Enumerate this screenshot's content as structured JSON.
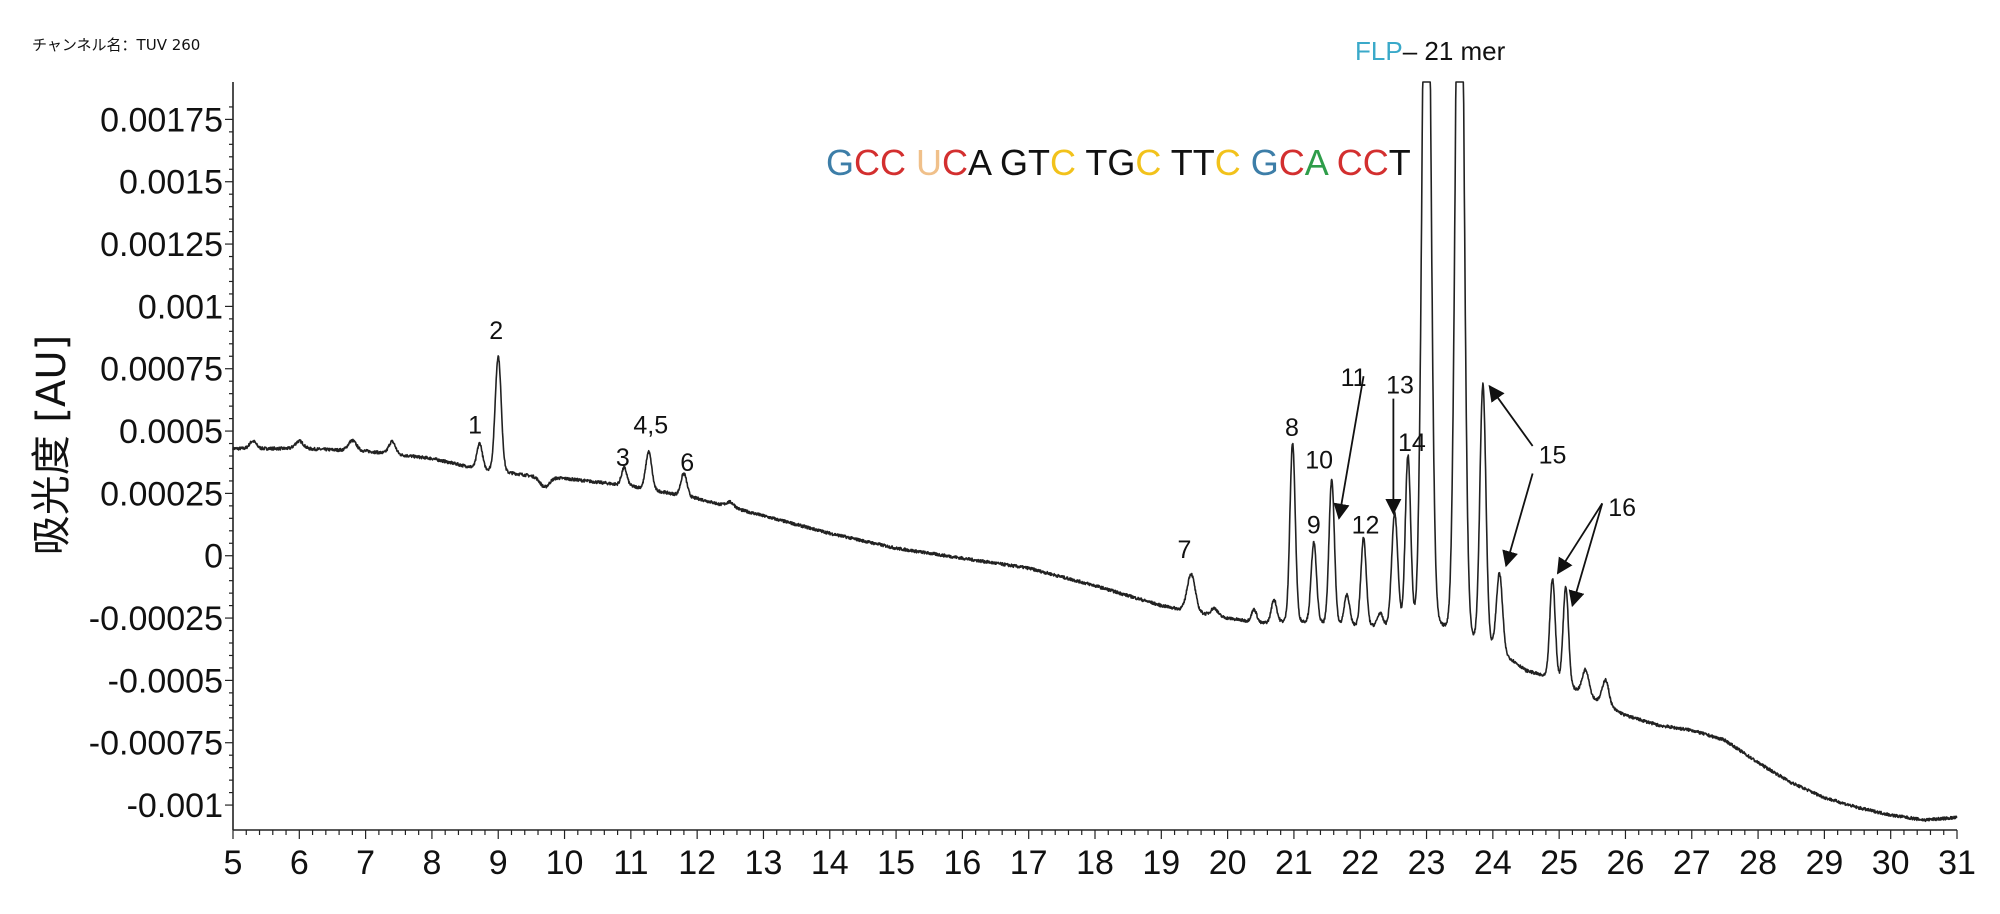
{
  "channel_label": "チャンネル名：TUV 260",
  "chart_data": {
    "type": "line",
    "ylabel": "吸光度 [AU]",
    "xlabel": "",
    "xlim": [
      5,
      31
    ],
    "ylim": [
      -0.0011,
      0.0019
    ],
    "x_ticks": [
      5,
      6,
      7,
      8,
      9,
      10,
      11,
      12,
      13,
      14,
      15,
      16,
      17,
      18,
      19,
      20,
      21,
      22,
      23,
      24,
      25,
      26,
      27,
      28,
      29,
      30,
      31
    ],
    "y_ticks": [
      {
        "value": 0.00175,
        "label": "0.00175"
      },
      {
        "value": 0.0015,
        "label": "0.0015"
      },
      {
        "value": 0.00125,
        "label": "0.00125"
      },
      {
        "value": 0.001,
        "label": "0.001"
      },
      {
        "value": 0.00075,
        "label": "0.00075"
      },
      {
        "value": 0.0005,
        "label": "0.0005"
      },
      {
        "value": 0.00025,
        "label": "0.00025"
      },
      {
        "value": 0,
        "label": "0"
      },
      {
        "value": -0.00025,
        "label": "-0.00025"
      },
      {
        "value": -0.0005,
        "label": "-0.0005"
      },
      {
        "value": -0.00075,
        "label": "-0.00075"
      },
      {
        "value": -0.001,
        "label": "-0.001"
      }
    ],
    "baseline": [
      [
        5,
        0.00043
      ],
      [
        6,
        0.00043
      ],
      [
        7,
        0.00042
      ],
      [
        8,
        0.00039
      ],
      [
        8.5,
        0.00036
      ],
      [
        9.5,
        0.00032
      ],
      [
        10,
        0.00031
      ],
      [
        11,
        0.00028
      ],
      [
        12,
        0.00023
      ],
      [
        13,
        0.00016
      ],
      [
        14,
        9e-05
      ],
      [
        15,
        3e-05
      ],
      [
        16,
        -1e-05
      ],
      [
        17,
        -5e-05
      ],
      [
        18,
        -0.00012
      ],
      [
        19,
        -0.0002
      ],
      [
        20,
        -0.00025
      ],
      [
        20.5,
        -0.00027
      ],
      [
        21,
        -0.00026
      ],
      [
        22,
        -0.00028
      ],
      [
        22.5,
        -0.00028
      ],
      [
        23,
        -0.00025
      ],
      [
        24,
        -0.00036
      ],
      [
        24.5,
        -0.00046
      ],
      [
        25,
        -0.0005
      ],
      [
        25.5,
        -0.00057
      ],
      [
        26,
        -0.00064
      ],
      [
        26.5,
        -0.00068
      ],
      [
        27,
        -0.0007
      ],
      [
        27.5,
        -0.00074
      ],
      [
        28,
        -0.00083
      ],
      [
        28.5,
        -0.00091
      ],
      [
        29,
        -0.00097
      ],
      [
        29.5,
        -0.00101
      ],
      [
        30,
        -0.00104
      ],
      [
        30.5,
        -0.00106
      ],
      [
        31,
        -0.00105
      ]
    ],
    "peaks": [
      {
        "x": 5.3,
        "h": 3e-05,
        "w": 0.05
      },
      {
        "x": 6.0,
        "h": 3e-05,
        "w": 0.06
      },
      {
        "x": 6.8,
        "h": 4e-05,
        "w": 0.06
      },
      {
        "x": 7.4,
        "h": 5e-05,
        "w": 0.05
      },
      {
        "x": 8.72,
        "h": 0.0001,
        "w": 0.04
      },
      {
        "x": 9.0,
        "h": 0.00046,
        "w": 0.045
      },
      {
        "x": 9.7,
        "h": -4e-05,
        "w": 0.07
      },
      {
        "x": 10.9,
        "h": 7e-05,
        "w": 0.04
      },
      {
        "x": 11.27,
        "h": 0.00015,
        "w": 0.045
      },
      {
        "x": 11.8,
        "h": 9e-05,
        "w": 0.045
      },
      {
        "x": 12.5,
        "h": 2e-05,
        "w": 0.06
      },
      {
        "x": 19.45,
        "h": 0.00015,
        "w": 0.06
      },
      {
        "x": 19.8,
        "h": 3e-05,
        "w": 0.05
      },
      {
        "x": 20.4,
        "h": 5e-05,
        "w": 0.04
      },
      {
        "x": 20.7,
        "h": 9e-05,
        "w": 0.04
      },
      {
        "x": 20.98,
        "h": 0.00071,
        "w": 0.04
      },
      {
        "x": 21.3,
        "h": 0.00032,
        "w": 0.04
      },
      {
        "x": 21.57,
        "h": 0.00058,
        "w": 0.04
      },
      {
        "x": 21.8,
        "h": 0.00012,
        "w": 0.04
      },
      {
        "x": 22.05,
        "h": 0.00035,
        "w": 0.04
      },
      {
        "x": 22.3,
        "h": 5e-05,
        "w": 0.04
      },
      {
        "x": 22.52,
        "h": 0.00045,
        "w": 0.045
      },
      {
        "x": 22.72,
        "h": 0.00067,
        "w": 0.04
      },
      {
        "x": 23.0,
        "h": 0.0035,
        "w": 0.06
      },
      {
        "x": 23.5,
        "h": 0.0035,
        "w": 0.06
      },
      {
        "x": 23.85,
        "h": 0.00103,
        "w": 0.045
      },
      {
        "x": 24.1,
        "h": 0.00031,
        "w": 0.045
      },
      {
        "x": 24.9,
        "h": 0.0004,
        "w": 0.04
      },
      {
        "x": 25.1,
        "h": 0.00039,
        "w": 0.04
      },
      {
        "x": 25.4,
        "h": 0.0001,
        "w": 0.05
      },
      {
        "x": 25.7,
        "h": 0.0001,
        "w": 0.05
      }
    ],
    "peak_labels": [
      {
        "text": "1",
        "x": 8.65,
        "y": 0.00049
      },
      {
        "text": "2",
        "x": 8.97,
        "y": 0.00087
      },
      {
        "text": "3",
        "x": 10.88,
        "y": 0.00036
      },
      {
        "text": "4,5",
        "x": 11.3,
        "y": 0.00049
      },
      {
        "text": "6",
        "x": 11.85,
        "y": 0.00034
      },
      {
        "text": "7",
        "x": 19.35,
        "y": -1e-05
      },
      {
        "text": "8",
        "x": 20.97,
        "y": 0.00048
      },
      {
        "text": "9",
        "x": 21.3,
        "y": 9e-05
      },
      {
        "text": "10",
        "x": 21.38,
        "y": 0.00035
      },
      {
        "text": "11",
        "x": 21.9,
        "y": 0.00068
      },
      {
        "text": "12",
        "x": 22.08,
        "y": 9e-05
      },
      {
        "text": "13",
        "x": 22.6,
        "y": 0.00065
      },
      {
        "text": "14",
        "x": 22.78,
        "y": 0.00042
      },
      {
        "text": "15",
        "x": 24.9,
        "y": 0.00037
      },
      {
        "text": "16",
        "x": 25.95,
        "y": 0.00016
      }
    ],
    "arrows": [
      {
        "from": [
          22.05,
          0.00072
        ],
        "to": [
          21.68,
          0.00015
        ]
      },
      {
        "from": [
          22.5,
          0.00063
        ],
        "to": [
          22.5,
          0.00017
        ]
      },
      {
        "from": [
          24.6,
          0.00044
        ],
        "to": [
          23.95,
          0.00068
        ]
      },
      {
        "from": [
          24.6,
          0.00033
        ],
        "to": [
          24.2,
          -4e-05
        ]
      },
      {
        "from": [
          25.65,
          0.00021
        ],
        "to": [
          24.98,
          -7e-05
        ]
      },
      {
        "from": [
          25.65,
          0.00021
        ],
        "to": [
          25.2,
          -0.0002
        ]
      }
    ],
    "sequence": [
      {
        "t": "G",
        "c": "#3d7ea8"
      },
      {
        "t": "CC ",
        "c": "#d32f2f"
      },
      {
        "t": "U",
        "c": "#f0c08a"
      },
      {
        "t": "C",
        "c": "#d32f2f"
      },
      {
        "t": "A ",
        "c": "#111111"
      },
      {
        "t": "GT",
        "c": "#111111"
      },
      {
        "t": "C ",
        "c": "#f2c21b"
      },
      {
        "t": "TG",
        "c": "#111111"
      },
      {
        "t": "C ",
        "c": "#f2c21b"
      },
      {
        "t": "TT",
        "c": "#111111"
      },
      {
        "t": "C ",
        "c": "#f2c21b"
      },
      {
        "t": "G",
        "c": "#3d7ea8"
      },
      {
        "t": "C",
        "c": "#d32f2f"
      },
      {
        "t": "A ",
        "c": "#2e9d4a"
      },
      {
        "t": "CC",
        "c": "#d32f2f"
      },
      {
        "t": "T",
        "c": "#111111"
      }
    ],
    "main_peak_label": {
      "prefix": "FLP",
      "suffix": "– 21 mer"
    },
    "colors": {
      "line": "#222222",
      "flp": "#3aa9c9"
    }
  }
}
